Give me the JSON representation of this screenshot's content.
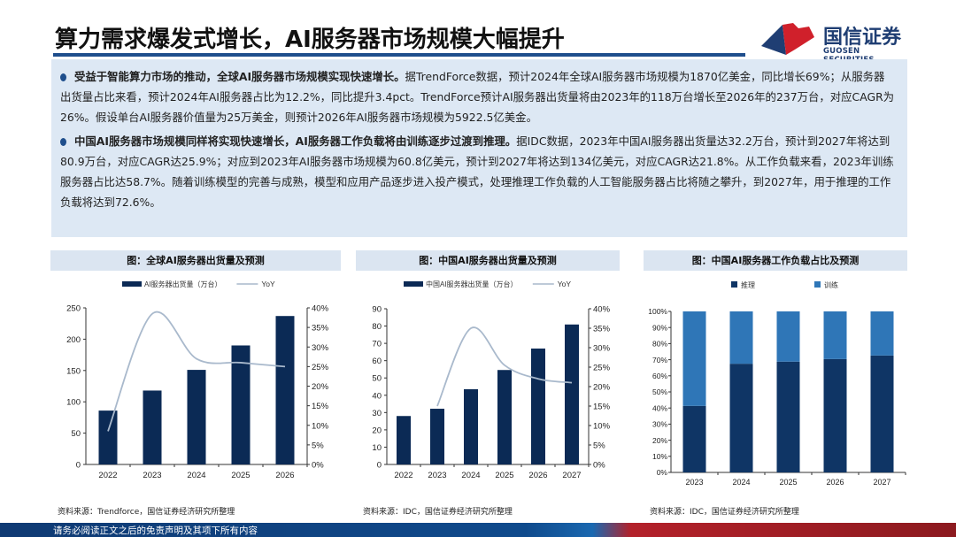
{
  "header": {
    "title": "算力需求爆发式增长，AI服务器市场规模大幅提升",
    "logo_cn": "国信证券",
    "logo_en": "GUOSEN SECURITIES"
  },
  "summary": {
    "paragraphs": [
      {
        "bold": "受益于智能算力市场的推动，全球AI服务器市场规模实现快速增长。",
        "text": "据TrendForce数据，预计2024年全球AI服务器市场规模为1870亿美金，同比增长69%；从服务器出货量占比来看，预计2024年AI服务器占比为12.2%，同比提升3.4pct。TrendForce预计AI服务器出货量将由2023年的118万台增长至2026年的237万台，对应CAGR为26%。假设单台AI服务器价值量为25万美金，则预计2026年AI服务器市场规模为5922.5亿美金。"
      },
      {
        "bold": "中国AI服务器市场规模同样将实现快速增长，AI服务器工作负载将由训练逐步过渡到推理。",
        "text": "据IDC数据，2023年中国AI服务器出货量达32.2万台，预计到2027年将达到80.9万台，对应CAGR达25.9%；对应到2023年AI服务器市场规模为60.8亿美元，预计到2027年将达到134亿美元，对应CAGR达21.8%。从工作负载来看，2023年训练服务器占比达58.7%。随着训练模型的完善与成熟，模型和应用产品逐步进入投产模式，处理推理工作负载的人工智能服务器占比将随之攀升，到2027年，用于推理的工作负载将达到72.6%。"
      }
    ]
  },
  "colors": {
    "bar": "#0b2a55",
    "line": "#a9b9cc",
    "infer": "#0f3565",
    "train": "#2f76b7",
    "accent": "#1e4e8c"
  },
  "chart_data": [
    {
      "type": "bar",
      "title": "图：全球AI服务器出货量及预测",
      "categories": [
        "2022",
        "2023",
        "2024",
        "2025",
        "2026"
      ],
      "series": [
        {
          "name": "AI服务器出货量（万台）",
          "type": "bar",
          "axis": "left",
          "values": [
            86,
            118,
            151,
            190,
            237
          ]
        },
        {
          "name": "YoY",
          "type": "line",
          "axis": "right",
          "values": [
            8.5,
            38.5,
            27,
            26,
            25
          ]
        }
      ],
      "yleft": {
        "min": 0,
        "max": 250,
        "ticks": [
          "0",
          "50",
          "100",
          "150",
          "200",
          "250"
        ]
      },
      "yright": {
        "min": 0,
        "max": 40,
        "ticks": [
          "0%",
          "5%",
          "10%",
          "15%",
          "20%",
          "25%",
          "30%",
          "35%",
          "40%"
        ]
      },
      "source": "资料来源：Trendforce，国信证券经济研究所整理"
    },
    {
      "type": "bar",
      "title": "图：中国AI服务器出货量及预测",
      "categories": [
        "2022",
        "2023",
        "2024",
        "2025",
        "2026",
        "2027"
      ],
      "series": [
        {
          "name": "中国AI服务器出货量（万台）",
          "type": "bar",
          "axis": "left",
          "values": [
            28,
            32.2,
            43.5,
            54.6,
            67,
            80.9
          ]
        },
        {
          "name": "YoY",
          "type": "line",
          "axis": "right",
          "values": [
            null,
            15,
            35,
            25.5,
            22,
            21
          ]
        }
      ],
      "yleft": {
        "min": 0,
        "max": 90,
        "ticks": [
          "0",
          "10",
          "20",
          "30",
          "40",
          "50",
          "60",
          "70",
          "80",
          "90"
        ]
      },
      "yright": {
        "min": 0,
        "max": 40,
        "ticks": [
          "0%",
          "5%",
          "10%",
          "15%",
          "20%",
          "25%",
          "30%",
          "35%",
          "40%"
        ]
      },
      "source": "资料来源：IDC，国信证券经济研究所整理"
    },
    {
      "type": "bar",
      "stacked": true,
      "title": "图：中国AI服务器工作负载占比及预测",
      "categories": [
        "2023",
        "2024",
        "2025",
        "2026",
        "2027"
      ],
      "series": [
        {
          "name": "推理",
          "values": [
            41.3,
            67.5,
            68.8,
            70.4,
            72.6
          ]
        },
        {
          "name": "训练",
          "values": [
            58.7,
            32.5,
            31.2,
            29.6,
            27.4
          ]
        }
      ],
      "yleft": {
        "min": 0,
        "max": 100,
        "ticks": [
          "0%",
          "10%",
          "20%",
          "30%",
          "40%",
          "50%",
          "60%",
          "70%",
          "80%",
          "90%",
          "100%"
        ]
      },
      "source": "资料来源：IDC，国信证券经济研究所整理"
    }
  ],
  "footer": {
    "disclaimer": "请务必阅读正文之后的免责声明及其项下所有内容"
  }
}
